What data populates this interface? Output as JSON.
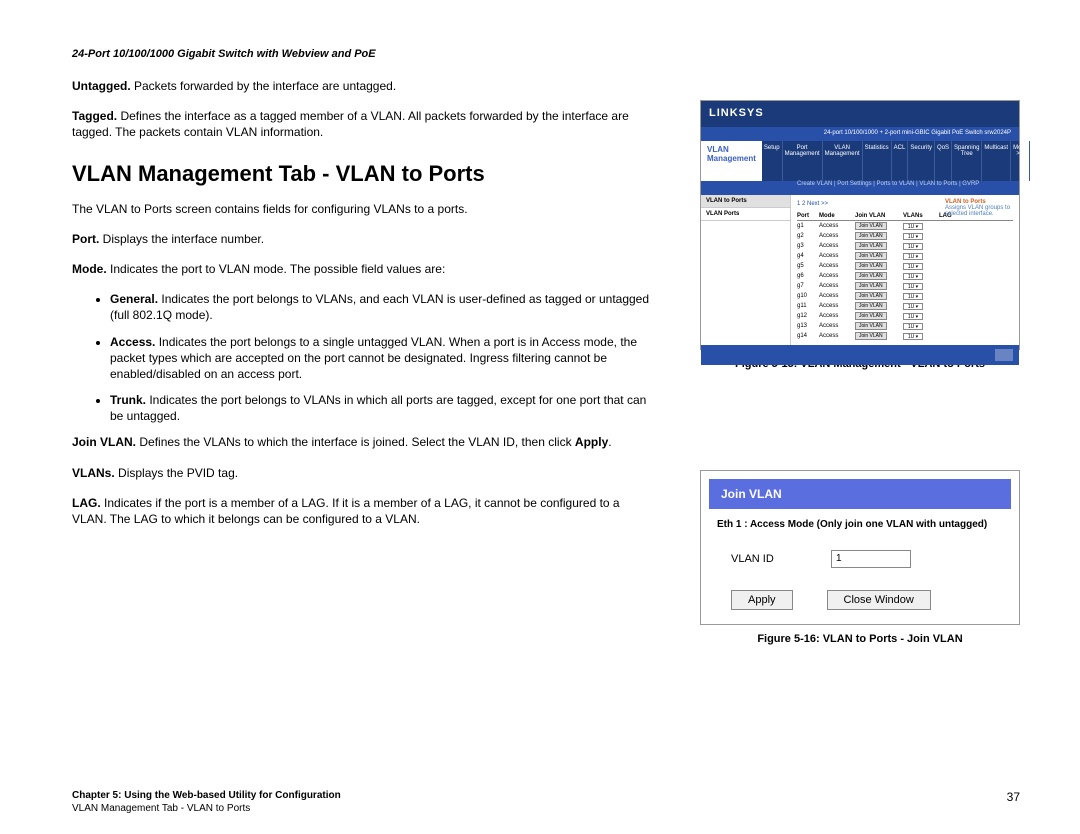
{
  "header": "24-Port 10/100/1000 Gigabit Switch with Webview and PoE",
  "intro": {
    "untagged": {
      "label": "Untagged.",
      "text": " Packets forwarded by the interface are untagged."
    },
    "tagged": {
      "label": "Tagged.",
      "text": " Defines the interface as a tagged member of a VLAN. All packets forwarded by the interface are tagged. The packets contain VLAN information."
    }
  },
  "h1": "VLAN Management Tab - VLAN to Ports",
  "desc": "The VLAN to Ports screen contains fields for configuring VLANs to a ports.",
  "port": {
    "label": "Port.",
    "text": " Displays the interface number."
  },
  "mode": {
    "label": "Mode.",
    "text": " Indicates the port to VLAN mode. The possible field values are:"
  },
  "bullets": {
    "general": {
      "label": "General.",
      "text": " Indicates the port belongs to VLANs, and each VLAN is user-defined as tagged or untagged (full 802.1Q mode)."
    },
    "access": {
      "label": "Access.",
      "text": " Indicates the port belongs to a single untagged VLAN. When a port is in Access mode, the packet types which are accepted on the port cannot be designated. Ingress filtering cannot be enabled/disabled on an access port."
    },
    "trunk": {
      "label": "Trunk.",
      "text": " Indicates the port belongs to VLANs in which all ports are tagged, except for one port that can be untagged."
    }
  },
  "joinvlan": {
    "label": "Join VLAN.",
    "text": " Defines the VLANs to which the interface is joined. Select the VLAN ID, then click ",
    "apply": "Apply",
    "suffix": "."
  },
  "vlans": {
    "label": "VLANs.",
    "text": " Displays the PVID tag."
  },
  "lag": {
    "label": "LAG.",
    "text": " Indicates if the port is a member of a LAG. If it is a member of a LAG, it cannot be configured to a VLAN. The LAG to which it belongs can be configured to a VLAN."
  },
  "fig1": {
    "caption": "Figure 5-15: VLAN Management - VLAN to Ports",
    "logo": "LINKSYS",
    "bar": "24-port 10/100/1000 + 2-port mini-GBIC Gigabit PoE Switch     srw2024P",
    "navleft": "VLAN Management",
    "tabs": [
      "Setup",
      "Port\nManagement",
      "VLAN\nManagement",
      "Statistics",
      "ACL",
      "Security",
      "QoS",
      "Spanning\nTree",
      "Multicast",
      "More >>"
    ],
    "subnav": "Create VLAN  |  Port Settings  |  Ports to VLAN  |  VLAN to Ports  |  GVRP",
    "side1": "VLAN to Ports",
    "side2": "VLAN Ports",
    "pg": "1 2   Next >>",
    "th": {
      "port": "Port",
      "mode": "Mode",
      "join": "Join VLAN",
      "vlans": "VLANs",
      "lag": "LAG"
    },
    "rows": [
      {
        "p": "g1",
        "m": "Access",
        "j": "Join VLAN",
        "v": "1U  ▾"
      },
      {
        "p": "g2",
        "m": "Access",
        "j": "Join VLAN",
        "v": "1U  ▾"
      },
      {
        "p": "g3",
        "m": "Access",
        "j": "Join VLAN",
        "v": "1U  ▾"
      },
      {
        "p": "g4",
        "m": "Access",
        "j": "Join VLAN",
        "v": "1U  ▾"
      },
      {
        "p": "g5",
        "m": "Access",
        "j": "Join VLAN",
        "v": "1U  ▾"
      },
      {
        "p": "g6",
        "m": "Access",
        "j": "Join VLAN",
        "v": "1U  ▾"
      },
      {
        "p": "g7",
        "m": "Access",
        "j": "Join VLAN",
        "v": "1U  ▾"
      },
      {
        "p": "g10",
        "m": "Access",
        "j": "Join VLAN",
        "v": "1U  ▾"
      },
      {
        "p": "g11",
        "m": "Access",
        "j": "Join VLAN",
        "v": "1U  ▾"
      },
      {
        "p": "g12",
        "m": "Access",
        "j": "Join VLAN",
        "v": "1U  ▾"
      },
      {
        "p": "g13",
        "m": "Access",
        "j": "Join VLAN",
        "v": "1U  ▾"
      },
      {
        "p": "g14",
        "m": "Access",
        "j": "Join VLAN",
        "v": "1U  ▾"
      }
    ],
    "help_t": "VLAN to Ports",
    "help_b": "Assigns VLAN groups to selected interface."
  },
  "fig2": {
    "caption": "Figure 5-16: VLAN to Ports - Join VLAN",
    "title": "Join VLAN",
    "desc": "Eth  1 :  Access  Mode  (Only  join  one  VLAN  with untagged)",
    "field_label": "VLAN ID",
    "field_value": "1",
    "btn1": "Apply",
    "btn2": "Close Window"
  },
  "footer": {
    "chapter": "Chapter 5: Using the Web-based Utility for Configuration",
    "section": "VLAN Management Tab - VLAN to Ports",
    "page": "37"
  }
}
